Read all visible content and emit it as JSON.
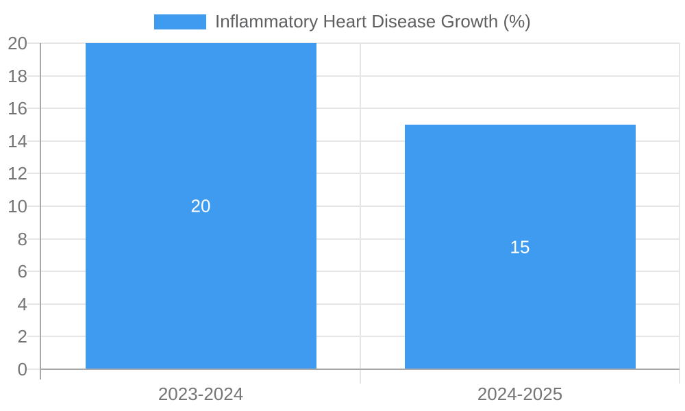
{
  "page": {
    "background": "#FFFFFF"
  },
  "chart_data": {
    "type": "bar",
    "title": "",
    "legend": {
      "position": "top",
      "label": "Inflammatory Heart Disease Growth (%)"
    },
    "categories": [
      "2023-2024",
      "2024-2025"
    ],
    "series": [
      {
        "name": "Inflammatory Heart Disease Growth (%)",
        "values": [
          20,
          15
        ]
      }
    ],
    "data_labels": {
      "show": true,
      "values": [
        "20",
        "15"
      ],
      "position": "center"
    },
    "y_axis": {
      "min": 0,
      "max": 20,
      "tick_step": 2,
      "tick_labels": [
        "0",
        "2",
        "4",
        "6",
        "8",
        "10",
        "12",
        "14",
        "16",
        "18",
        "20"
      ]
    },
    "x_axis": {
      "tick_labels": [
        "2023-2024",
        "2024-2025"
      ]
    },
    "grid": {
      "horizontal": true,
      "vertical_column_separators": true
    },
    "colors": {
      "bar": "#3E9BF0",
      "gridline": "#E6E6E6",
      "axis_line": "#A8A8A8",
      "axis_label": "#757575",
      "legend_text": "#5F6062",
      "value_label": "#FFFFFF"
    }
  }
}
